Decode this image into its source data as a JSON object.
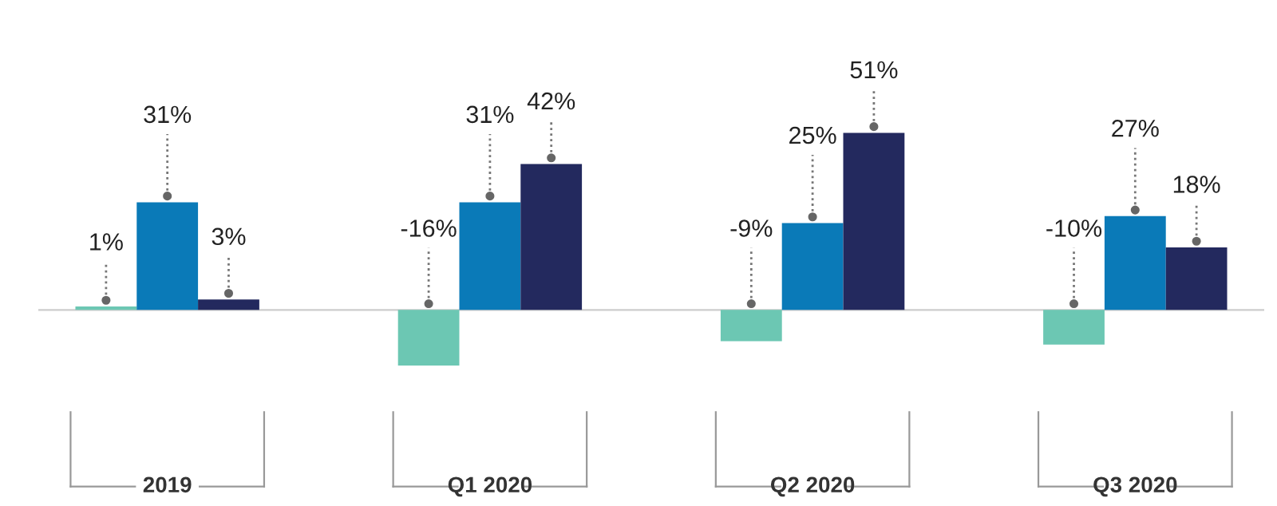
{
  "chart_data": {
    "type": "bar",
    "categories": [
      "2019",
      "Q1 2020",
      "Q2 2020",
      "Q3 2020"
    ],
    "series": [
      {
        "color": "#6cc7b3",
        "values": [
          1,
          -16,
          -9,
          -10
        ],
        "value_labels": [
          "1%",
          "-16%",
          "-9%",
          "-10%"
        ]
      },
      {
        "color": "#0a7ab8",
        "values": [
          31,
          31,
          25,
          27
        ],
        "value_labels": [
          "31%",
          "31%",
          "25%",
          "27%"
        ]
      },
      {
        "color": "#23295e",
        "values": [
          3,
          42,
          51,
          18
        ],
        "value_labels": [
          "3%",
          "42%",
          "51%",
          "18%"
        ]
      }
    ],
    "legend": false
  }
}
